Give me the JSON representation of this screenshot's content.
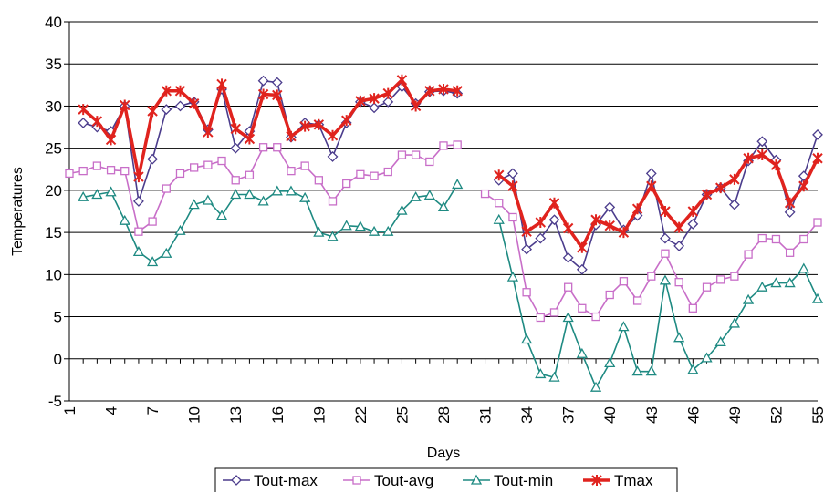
{
  "chart_data": {
    "type": "line",
    "xlabel": "Days",
    "ylabel": "Temperatures",
    "ylim": [
      -5,
      40
    ],
    "yticks": [
      "-5",
      "0",
      "5",
      "10",
      "15",
      "20",
      "25",
      "30",
      "35",
      "40"
    ],
    "xlim": [
      1,
      55
    ],
    "xticks": [
      "1",
      "4",
      "7",
      "10",
      "13",
      "16",
      "19",
      "22",
      "25",
      "28",
      "31",
      "34",
      "37",
      "40",
      "43",
      "46",
      "49",
      "52",
      "55"
    ],
    "grid": "horizontal",
    "legend_position": "bottom",
    "x": [
      1,
      2,
      3,
      4,
      5,
      6,
      7,
      8,
      9,
      10,
      11,
      12,
      13,
      14,
      15,
      16,
      17,
      18,
      19,
      20,
      21,
      22,
      23,
      24,
      25,
      26,
      27,
      28,
      29,
      30,
      31,
      32,
      33,
      34,
      35,
      36,
      37,
      38,
      39,
      40,
      41,
      42,
      43,
      44,
      45,
      46,
      47,
      48,
      49,
      50,
      51,
      52,
      53,
      54,
      55
    ],
    "series": [
      {
        "name": "Tout-max",
        "color": "#4b3c8c",
        "marker": "diamond",
        "values": [
          null,
          28,
          27.5,
          27,
          30,
          18.7,
          23.7,
          29.6,
          30,
          30.5,
          27.2,
          32,
          25,
          27,
          33,
          32.8,
          26.3,
          28,
          27.8,
          24,
          28,
          30.5,
          29.8,
          30.5,
          32.3,
          30.3,
          31.7,
          31.8,
          31.5,
          null,
          null,
          21.2,
          22,
          13,
          14.3,
          16.5,
          12,
          10.6,
          15.9,
          18,
          15.3,
          17,
          22,
          14.3,
          13.4,
          16,
          19.5,
          20.3,
          18.3,
          23.5,
          25.8,
          23.6,
          17.4,
          21.7,
          26.6
        ]
      },
      {
        "name": "Tout-avg",
        "color": "#c86ec8",
        "marker": "square",
        "values": [
          22,
          22.3,
          22.9,
          22.4,
          22.3,
          15.1,
          16.3,
          20.2,
          22,
          22.7,
          23,
          23.5,
          21.2,
          21.8,
          25.1,
          25.1,
          22.3,
          22.9,
          21.2,
          18.7,
          20.8,
          21.9,
          21.7,
          22.2,
          24.2,
          24.2,
          23.4,
          25.3,
          25.4,
          null,
          19.6,
          18.5,
          16.8,
          7.9,
          4.9,
          5.5,
          8.5,
          6,
          5,
          7.6,
          9.2,
          6.9,
          9.8,
          12.5,
          9.1,
          6,
          8.5,
          9.4,
          9.8,
          12.4,
          14.3,
          14.2,
          12.6,
          14.2,
          16.2
        ]
      },
      {
        "name": "Tout-min",
        "color": "#1e8a82",
        "marker": "triangle",
        "values": [
          null,
          19.2,
          19.5,
          19.8,
          16.4,
          12.7,
          11.5,
          12.5,
          15.2,
          18.3,
          18.8,
          17,
          19.5,
          19.5,
          18.7,
          19.9,
          19.9,
          19.1,
          15,
          14.5,
          15.8,
          15.7,
          15.1,
          15.1,
          17.6,
          19.2,
          19.4,
          18,
          20.7,
          null,
          null,
          16.5,
          9.7,
          2.3,
          -1.8,
          -2.2,
          4.9,
          0.6,
          -3.4,
          -0.5,
          3.8,
          -1.5,
          -1.5,
          9.3,
          2.5,
          -1.3,
          0.1,
          2,
          4.2,
          7,
          8.5,
          9,
          9,
          10.7,
          7.1
        ]
      },
      {
        "name": "Tmax",
        "color": "#e0231e",
        "marker": "star",
        "values": [
          null,
          29.6,
          28.2,
          26,
          30.1,
          21.6,
          29.4,
          31.8,
          31.8,
          30.3,
          26.9,
          32.6,
          27.3,
          26.1,
          31.4,
          31.3,
          26.4,
          27.6,
          27.8,
          26.5,
          28.3,
          30.6,
          30.9,
          31.5,
          33.1,
          30,
          31.8,
          32,
          31.8,
          null,
          null,
          21.8,
          20.5,
          15.1,
          16.2,
          18.5,
          15.5,
          13.2,
          16.5,
          15.8,
          15,
          17.8,
          20.5,
          17.5,
          15.6,
          17.5,
          19.5,
          20.3,
          21.3,
          23.8,
          24.2,
          23,
          18.5,
          20.5,
          23.8
        ]
      }
    ]
  }
}
